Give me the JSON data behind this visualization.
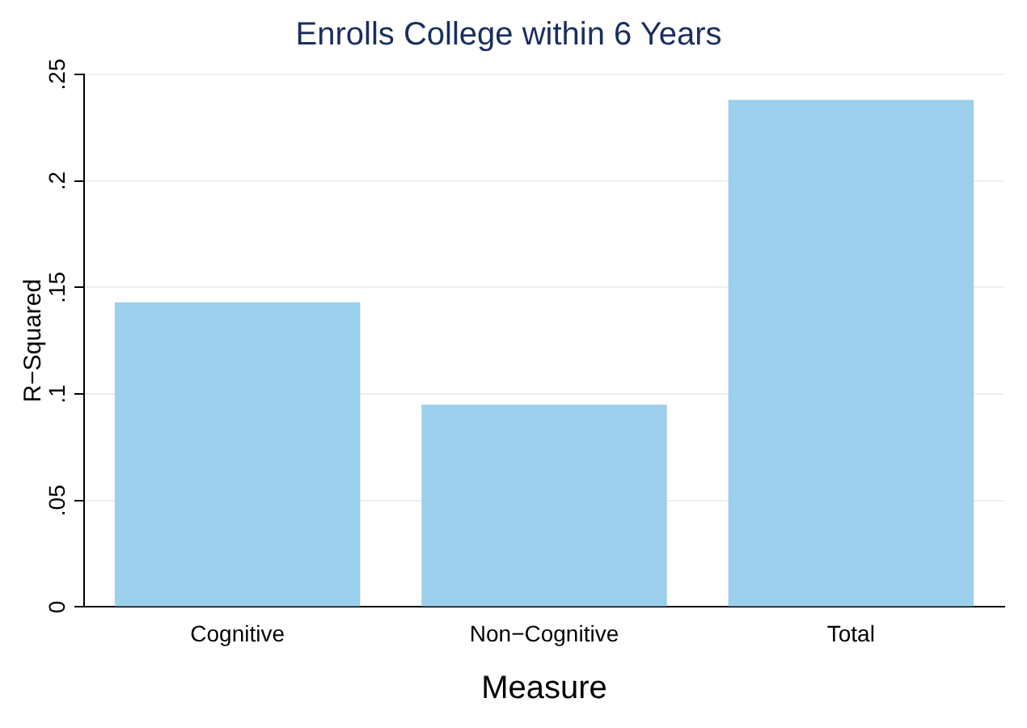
{
  "chart_data": {
    "type": "bar",
    "title": "Enrolls College within 6 Years",
    "xlabel": "Measure",
    "ylabel": "R−Squared",
    "categories": [
      "Cognitive",
      "Non−Cognitive",
      "Total"
    ],
    "values": [
      0.143,
      0.095,
      0.238
    ],
    "color": "#9ccfec",
    "ylim": [
      0,
      0.25
    ],
    "yticks": [
      0,
      {
        "value": 0.05,
        "label": ".05"
      },
      {
        "value": 0.1,
        "label": ".1"
      },
      {
        "value": 0.15,
        "label": ".15"
      },
      {
        "value": 0.2,
        "label": ".2"
      },
      {
        "value": 0.25,
        "label": ".25"
      }
    ],
    "grid": "y"
  }
}
